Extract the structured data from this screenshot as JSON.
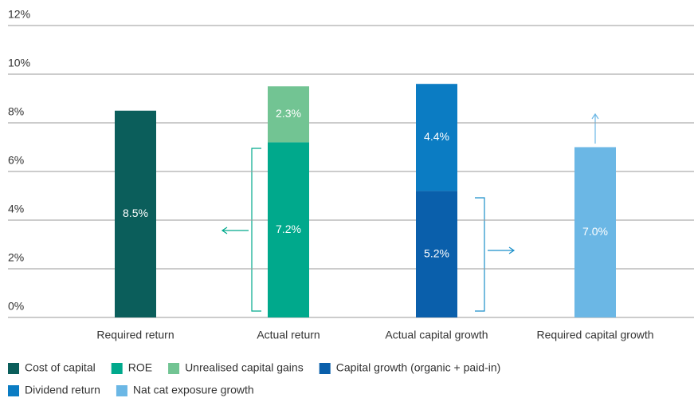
{
  "chart_data": {
    "type": "bar",
    "stacked": true,
    "categories": [
      "Required return",
      "Actual return",
      "Actual capital growth",
      "Required capital growth"
    ],
    "series": [
      {
        "name": "Cost of capital",
        "color": "#0b5e5b",
        "values": [
          8.5,
          null,
          null,
          null
        ],
        "value_labels": [
          "8.5%",
          null,
          null,
          null
        ]
      },
      {
        "name": "ROE",
        "color": "#00a98c",
        "values": [
          null,
          7.2,
          null,
          null
        ],
        "value_labels": [
          null,
          "7.2%",
          null,
          null
        ]
      },
      {
        "name": "Unrealised capital gains",
        "color": "#72c493",
        "values": [
          null,
          2.3,
          null,
          null
        ],
        "value_labels": [
          null,
          "2.3%",
          null,
          null
        ]
      },
      {
        "name": "Capital growth (organic + paid-in)",
        "color": "#0a5fab",
        "values": [
          null,
          null,
          5.2,
          null
        ],
        "value_labels": [
          null,
          null,
          "5.2%",
          null
        ]
      },
      {
        "name": "Dividend return",
        "color": "#0b7cc3",
        "values": [
          null,
          null,
          4.4,
          null
        ],
        "value_labels": [
          null,
          null,
          "4.4%",
          null
        ]
      },
      {
        "name": "Nat cat exposure growth",
        "color": "#6bb7e5",
        "values": [
          null,
          null,
          null,
          7.0
        ],
        "value_labels": [
          null,
          null,
          null,
          "7.0%"
        ]
      }
    ],
    "ylim": [
      0,
      12
    ],
    "yticks": [
      {
        "value": 0,
        "label": "0%"
      },
      {
        "value": 2,
        "label": "2%"
      },
      {
        "value": 4,
        "label": "4%"
      },
      {
        "value": 6,
        "label": "6%"
      },
      {
        "value": 8,
        "label": "8%"
      },
      {
        "value": 10,
        "label": "10%"
      },
      {
        "value": 12,
        "label": "12%"
      }
    ],
    "grid": true
  }
}
